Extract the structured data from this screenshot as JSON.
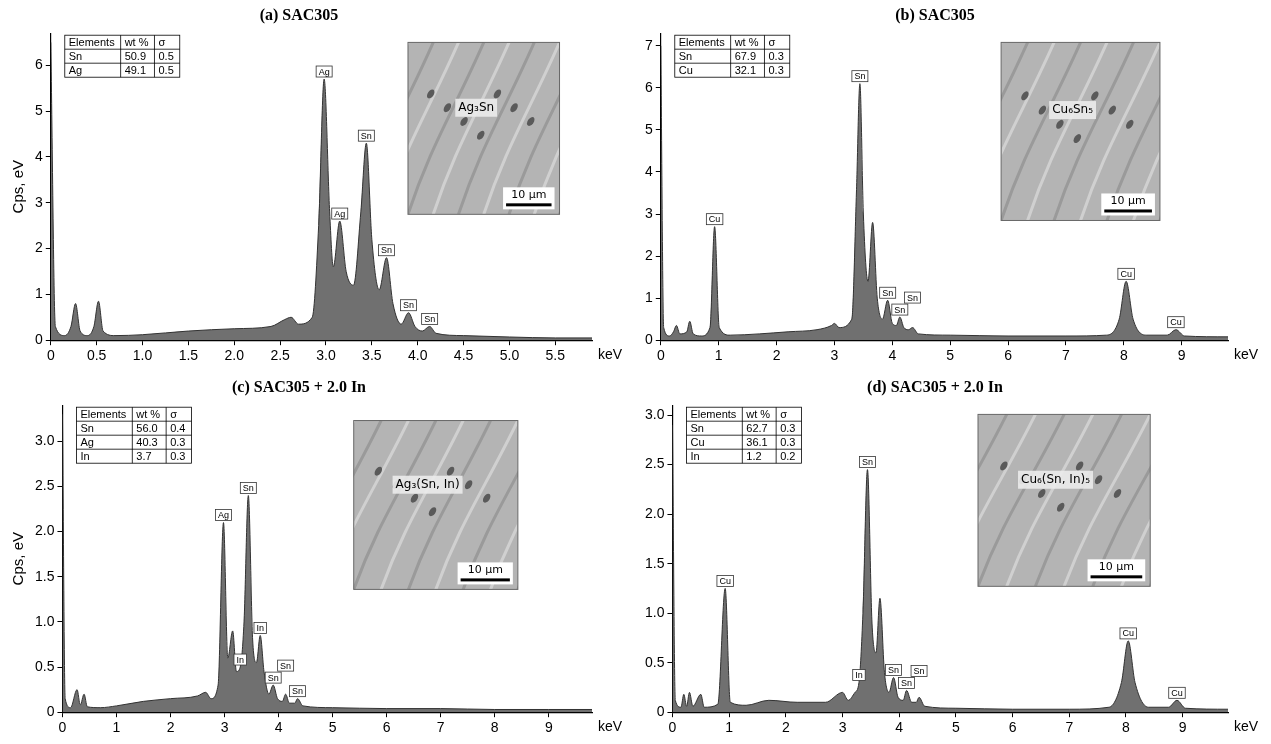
{
  "chart_data": [
    {
      "type": "line",
      "title": "(a) SAC305",
      "x_label": "keV",
      "y_label": "Cps, eV",
      "color": "#707070",
      "grid": false,
      "x": [
        0,
        0.05,
        0.15,
        0.22,
        0.27,
        0.32,
        0.4,
        0.47,
        0.52,
        0.57,
        0.7,
        1.0,
        1.5,
        2.0,
        2.4,
        2.55,
        2.62,
        2.7,
        2.85,
        2.92,
        2.98,
        3.04,
        3.08,
        3.15,
        3.22,
        3.3,
        3.38,
        3.44,
        3.5,
        3.58,
        3.66,
        3.73,
        3.82,
        3.9,
        3.97,
        4.05,
        4.13,
        4.2,
        4.5,
        5.0,
        5.5,
        5.9
      ],
      "values": [
        6.5,
        0.3,
        0.1,
        0.3,
        0.8,
        0.2,
        0.1,
        0.3,
        0.85,
        0.2,
        0.1,
        0.12,
        0.2,
        0.25,
        0.3,
        0.45,
        0.5,
        0.35,
        0.5,
        2.5,
        5.7,
        2.8,
        1.6,
        2.6,
        1.5,
        1.2,
        2.8,
        4.3,
        2.2,
        1.1,
        1.8,
        0.8,
        0.35,
        0.6,
        0.3,
        0.2,
        0.3,
        0.15,
        0.1,
        0.07,
        0.05,
        0.05
      ],
      "xlim": [
        0,
        5.9
      ],
      "xticks": [
        0,
        0.5,
        {
          "value": 1,
          "label": "1.0"
        },
        1.5,
        {
          "value": 2,
          "label": "2.0"
        },
        2.5,
        {
          "value": 3,
          "label": "3.0"
        },
        3.5,
        {
          "value": 4,
          "label": "4.0"
        },
        4.5,
        {
          "value": 5,
          "label": "5.0"
        },
        5.5
      ],
      "ylim": [
        0,
        6.7
      ],
      "yticks": [
        0,
        1,
        2,
        3,
        4,
        5,
        6
      ],
      "annotations": [
        {
          "x": 2.98,
          "y": 5.7,
          "text": "Ag"
        },
        {
          "x": 3.15,
          "y": 2.6,
          "text": "Ag"
        },
        {
          "x": 3.44,
          "y": 4.3,
          "text": "Sn"
        },
        {
          "x": 3.66,
          "y": 1.8,
          "text": "Sn"
        },
        {
          "x": 3.9,
          "y": 0.6,
          "text": "Sn"
        },
        {
          "x": 4.13,
          "y": 0.3,
          "text": "Sn"
        }
      ],
      "table": {
        "columns": [
          "Elements",
          "wt %",
          "σ"
        ],
        "rows": [
          [
            "Sn",
            "50.9",
            "0.5"
          ],
          [
            "Ag",
            "49.1",
            "0.5"
          ]
        ]
      },
      "inset": {
        "label": "Ag₃Sn",
        "scale_bar": "10 μm"
      }
    },
    {
      "type": "line",
      "title": "(b) SAC305",
      "x_label": "keV",
      "color": "#707070",
      "grid": false,
      "x": [
        0,
        0.05,
        0.15,
        0.22,
        0.27,
        0.33,
        0.45,
        0.5,
        0.56,
        0.7,
        0.85,
        0.93,
        1.01,
        1.2,
        1.7,
        2.2,
        2.7,
        2.95,
        3.0,
        3.08,
        3.3,
        3.38,
        3.44,
        3.5,
        3.58,
        3.66,
        3.74,
        3.83,
        3.92,
        4.0,
        4.07,
        4.13,
        4.2,
        4.28,
        4.35,
        4.45,
        5.0,
        6.0,
        7.0,
        7.7,
        7.92,
        8.04,
        8.16,
        8.4,
        8.75,
        8.9,
        9.05,
        9.8
      ],
      "values": [
        7.0,
        0.3,
        0.1,
        0.2,
        0.35,
        0.15,
        0.2,
        0.45,
        0.15,
        0.1,
        0.3,
        2.7,
        0.3,
        0.12,
        0.15,
        0.2,
        0.25,
        0.35,
        0.4,
        0.3,
        0.5,
        3.5,
        6.1,
        3.0,
        1.4,
        2.8,
        1.0,
        0.5,
        0.95,
        0.4,
        0.35,
        0.55,
        0.3,
        0.25,
        0.3,
        0.15,
        0.12,
        0.1,
        0.1,
        0.12,
        0.5,
        1.4,
        0.5,
        0.12,
        0.12,
        0.25,
        0.1,
        0.08
      ],
      "xlim": [
        0,
        9.8
      ],
      "xticks": [
        0,
        1,
        2,
        3,
        4,
        5,
        6,
        7,
        8,
        9
      ],
      "ylim": [
        0,
        7.3
      ],
      "yticks": [
        0,
        1,
        2,
        3,
        4,
        5,
        6,
        7
      ],
      "annotations": [
        {
          "x": 0.93,
          "y": 2.7,
          "text": "Cu"
        },
        {
          "x": 3.44,
          "y": 6.1,
          "text": "Sn"
        },
        {
          "x": 3.92,
          "y": 0.95,
          "text": "Sn"
        },
        {
          "x": 4.13,
          "y": 0.55,
          "text": "Sn"
        },
        {
          "x": 4.35,
          "y": 0.3,
          "text": "Sn"
        },
        {
          "x": 8.04,
          "y": 1.4,
          "text": "Cu"
        },
        {
          "x": 8.9,
          "y": 0.25,
          "text": "Cu"
        }
      ],
      "table": {
        "columns": [
          "Elements",
          "wt %",
          "σ"
        ],
        "rows": [
          [
            "Sn",
            "67.9",
            "0.3"
          ],
          [
            "Cu",
            "32.1",
            "0.3"
          ]
        ]
      },
      "inset": {
        "label": "Cu₆Sn₅",
        "scale_bar": "10 μm"
      }
    },
    {
      "type": "line",
      "title": "(c) SAC305 + 2.0 In",
      "x_label": "keV",
      "y_label": "Cps, eV",
      "color": "#707070",
      "grid": false,
      "x": [
        0,
        0.05,
        0.15,
        0.27,
        0.33,
        0.4,
        0.46,
        0.7,
        1.0,
        1.5,
        2.0,
        2.5,
        2.65,
        2.75,
        2.88,
        2.98,
        3.06,
        3.15,
        3.22,
        3.29,
        3.36,
        3.44,
        3.52,
        3.59,
        3.66,
        3.73,
        3.82,
        3.9,
        3.98,
        4.07,
        4.13,
        4.2,
        4.3,
        4.35,
        4.45,
        5.0,
        6.0,
        7.0,
        8.0,
        9.0,
        9.8
      ],
      "values": [
        3.3,
        0.15,
        0.05,
        0.25,
        0.08,
        0.2,
        0.06,
        0.05,
        0.07,
        0.12,
        0.15,
        0.18,
        0.22,
        0.15,
        0.3,
        2.1,
        0.6,
        0.9,
        0.45,
        0.5,
        1.0,
        2.4,
        0.8,
        0.55,
        0.85,
        0.45,
        0.2,
        0.3,
        0.15,
        0.12,
        0.2,
        0.1,
        0.1,
        0.15,
        0.07,
        0.05,
        0.04,
        0.04,
        0.03,
        0.03,
        0.03
      ],
      "xlim": [
        0,
        9.8
      ],
      "xticks": [
        0,
        1,
        2,
        3,
        4,
        5,
        6,
        7,
        8,
        9
      ],
      "ylim": [
        0,
        3.4
      ],
      "yticks": [
        0,
        0.5,
        {
          "value": 1,
          "label": "1.0"
        },
        1.5,
        {
          "value": 2,
          "label": "2.0"
        },
        2.5,
        {
          "value": 3,
          "label": "3.0"
        }
      ],
      "annotations": [
        {
          "x": 2.98,
          "y": 2.1,
          "text": "Ag"
        },
        {
          "x": 3.29,
          "y": 0.5,
          "text": "In"
        },
        {
          "x": 3.44,
          "y": 2.4,
          "text": "Sn"
        },
        {
          "x": 3.66,
          "y": 0.85,
          "text": "In"
        },
        {
          "x": 3.9,
          "y": 0.3,
          "text": "Sn"
        },
        {
          "x": 4.13,
          "y": 0.2,
          "text": "Sn"
        },
        {
          "x": 4.35,
          "y": 0.15,
          "text": "Sn"
        }
      ],
      "table": {
        "columns": [
          "Elements",
          "wt %",
          "σ"
        ],
        "rows": [
          [
            "Sn",
            "56.0",
            "0.4"
          ],
          [
            "Ag",
            "40.3",
            "0.3"
          ],
          [
            "In",
            "3.7",
            "0.3"
          ]
        ]
      },
      "inset": {
        "label": "Ag₃(Sn, In)",
        "scale_bar": "10 μm"
      }
    },
    {
      "type": "line",
      "title": "(d) SAC305 + 2.0 In",
      "x_label": "keV",
      "color": "#707070",
      "grid": false,
      "x": [
        0,
        0.05,
        0.15,
        0.2,
        0.25,
        0.3,
        0.36,
        0.5,
        0.56,
        0.8,
        0.93,
        1.02,
        1.3,
        1.7,
        2.2,
        2.7,
        3.0,
        3.1,
        3.22,
        3.29,
        3.36,
        3.44,
        3.52,
        3.59,
        3.66,
        3.74,
        3.82,
        3.9,
        3.98,
        4.07,
        4.13,
        4.22,
        4.3,
        4.35,
        4.45,
        5.0,
        6.0,
        7.0,
        7.7,
        7.92,
        8.04,
        8.16,
        8.4,
        8.75,
        8.9,
        9.05,
        9.8
      ],
      "values": [
        2.9,
        0.12,
        0.05,
        0.18,
        0.06,
        0.2,
        0.06,
        0.18,
        0.05,
        0.08,
        1.25,
        0.1,
        0.07,
        0.12,
        0.1,
        0.1,
        0.2,
        0.12,
        0.2,
        0.3,
        1.0,
        2.45,
        0.9,
        0.6,
        1.15,
        0.4,
        0.2,
        0.35,
        0.15,
        0.12,
        0.22,
        0.1,
        0.1,
        0.15,
        0.06,
        0.04,
        0.03,
        0.03,
        0.05,
        0.3,
        0.72,
        0.3,
        0.05,
        0.05,
        0.12,
        0.04,
        0.03
      ],
      "xlim": [
        0,
        9.8
      ],
      "xticks": [
        0,
        1,
        2,
        3,
        4,
        5,
        6,
        7,
        8,
        9
      ],
      "ylim": [
        0,
        3.1
      ],
      "yticks": [
        0,
        0.5,
        {
          "value": 1,
          "label": "1.0"
        },
        1.5,
        {
          "value": 2,
          "label": "2.0"
        },
        2.5,
        {
          "value": 3,
          "label": "3.0"
        }
      ],
      "annotations": [
        {
          "x": 0.93,
          "y": 1.25,
          "text": "Cu"
        },
        {
          "x": 3.29,
          "y": 0.3,
          "text": "In"
        },
        {
          "x": 3.44,
          "y": 2.45,
          "text": "Sn"
        },
        {
          "x": 3.9,
          "y": 0.35,
          "text": "Sn"
        },
        {
          "x": 4.13,
          "y": 0.22,
          "text": "Sn"
        },
        {
          "x": 4.35,
          "y": 0.15,
          "text": "Sn"
        },
        {
          "x": 8.04,
          "y": 0.72,
          "text": "Cu"
        },
        {
          "x": 8.9,
          "y": 0.12,
          "text": "Cu"
        }
      ],
      "table": {
        "columns": [
          "Elements",
          "wt %",
          "σ"
        ],
        "rows": [
          [
            "Sn",
            "62.7",
            "0.3"
          ],
          [
            "Cu",
            "36.1",
            "0.3"
          ],
          [
            "In",
            "1.2",
            "0.2"
          ]
        ]
      },
      "inset": {
        "label": "Cu₆(Sn, In)₅",
        "scale_bar": "10 μm"
      }
    }
  ]
}
